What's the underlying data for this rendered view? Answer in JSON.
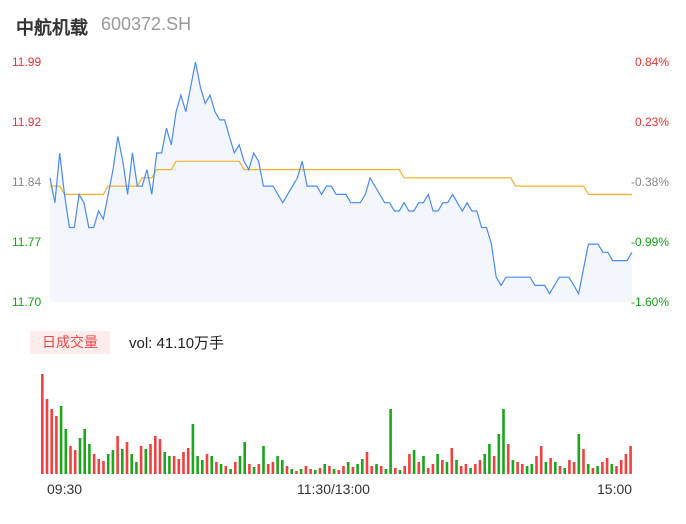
{
  "header": {
    "name": "中航机载",
    "code": "600372.SH"
  },
  "price_axis": {
    "left_labels": [
      "11.99",
      "11.92",
      "11.84",
      "11.77",
      "11.70"
    ],
    "right_labels": [
      "0.84%",
      "0.23%",
      "-0.38%",
      "-0.99%",
      "-1.60%"
    ],
    "colors": [
      "#f03030",
      "#f03030",
      "#888888",
      "#14a314",
      "#14a314"
    ]
  },
  "volume": {
    "badge_label": "日成交量",
    "vol_text": "vol: 41.10万手"
  },
  "time_axis": {
    "labels": [
      "09:30",
      "11:30/13:00",
      "15:00"
    ]
  },
  "colors": {
    "price_line": "#4a8af4",
    "avg_line": "#f5b02e",
    "up": "#f04040",
    "down": "#1aa71a"
  },
  "chart_data": [
    {
      "type": "line",
      "title": "",
      "ylim": [
        11.7,
        11.99
      ],
      "grid": false,
      "series": [
        {
          "values": [
            11.85,
            11.82,
            11.88,
            11.83,
            11.79,
            11.79,
            11.83,
            11.82,
            11.79,
            11.79,
            11.81,
            11.8,
            11.83,
            11.86,
            11.9,
            11.87,
            11.83,
            11.88,
            11.84,
            11.84,
            11.86,
            11.83,
            11.88,
            11.88,
            11.91,
            11.89,
            11.93,
            11.95,
            11.93,
            11.96,
            11.99,
            11.96,
            11.94,
            11.95,
            11.93,
            11.92,
            11.92,
            11.9,
            11.88,
            11.89,
            11.87,
            11.86,
            11.88,
            11.87,
            11.84,
            11.84,
            11.84,
            11.83,
            11.82,
            11.83,
            11.84,
            11.85,
            11.87,
            11.84,
            11.84,
            11.84,
            11.83,
            11.84,
            11.84,
            11.83,
            11.83,
            11.83,
            11.82,
            11.82,
            11.82,
            11.83,
            11.85,
            11.84,
            11.83,
            11.82,
            11.82,
            11.81,
            11.81,
            11.82,
            11.81,
            11.81,
            11.82,
            11.82,
            11.83,
            11.81,
            11.81,
            11.82,
            11.82,
            11.83,
            11.82,
            11.81,
            11.82,
            11.81,
            11.81,
            11.79,
            11.79,
            11.77,
            11.73,
            11.72,
            11.73,
            11.73,
            11.73,
            11.73,
            11.73,
            11.73,
            11.72,
            11.72,
            11.72,
            11.71,
            11.72,
            11.73,
            11.73,
            11.73,
            11.72,
            11.71,
            11.74,
            11.77,
            11.77,
            11.77,
            11.76,
            11.76,
            11.75,
            11.75,
            11.75,
            11.75,
            11.76
          ]
        },
        {
          "values": [
            11.84,
            11.84,
            11.84,
            11.83,
            11.83,
            11.83,
            11.83,
            11.83,
            11.83,
            11.83,
            11.83,
            11.83,
            11.84,
            11.84,
            11.84,
            11.84,
            11.84,
            11.84,
            11.84,
            11.85,
            11.85,
            11.85,
            11.86,
            11.86,
            11.86,
            11.86,
            11.87,
            11.87,
            11.87,
            11.87,
            11.87,
            11.87,
            11.87,
            11.87,
            11.87,
            11.87,
            11.87,
            11.87,
            11.87,
            11.87,
            11.86,
            11.86,
            11.86,
            11.86,
            11.86,
            11.86,
            11.86,
            11.86,
            11.86,
            11.86,
            11.86,
            11.86,
            11.86,
            11.86,
            11.86,
            11.86,
            11.86,
            11.86,
            11.86,
            11.86,
            11.86,
            11.86,
            11.86,
            11.86,
            11.86,
            11.86,
            11.86,
            11.86,
            11.86,
            11.86,
            11.86,
            11.86,
            11.86,
            11.85,
            11.85,
            11.85,
            11.85,
            11.85,
            11.85,
            11.85,
            11.85,
            11.85,
            11.85,
            11.85,
            11.85,
            11.85,
            11.85,
            11.85,
            11.85,
            11.85,
            11.85,
            11.85,
            11.85,
            11.85,
            11.85,
            11.85,
            11.84,
            11.84,
            11.84,
            11.84,
            11.84,
            11.84,
            11.84,
            11.84,
            11.84,
            11.84,
            11.84,
            11.84,
            11.84,
            11.84,
            11.84,
            11.83,
            11.83,
            11.83,
            11.83,
            11.83,
            11.83,
            11.83,
            11.83,
            11.83,
            11.83
          ]
        }
      ]
    },
    {
      "type": "bar",
      "title": "",
      "values": [
        100,
        75,
        65,
        58,
        68,
        45,
        28,
        24,
        36,
        45,
        30,
        20,
        15,
        13,
        20,
        24,
        38,
        25,
        32,
        20,
        12,
        28,
        25,
        30,
        38,
        35,
        22,
        18,
        18,
        15,
        22,
        26,
        50,
        18,
        14,
        20,
        18,
        12,
        10,
        8,
        5,
        12,
        18,
        32,
        10,
        7,
        10,
        28,
        10,
        12,
        18,
        14,
        8,
        5,
        3,
        5,
        8,
        5,
        4,
        6,
        10,
        8,
        5,
        4,
        8,
        12,
        7,
        10,
        15,
        22,
        8,
        10,
        8,
        5,
        65,
        6,
        4,
        8,
        20,
        24,
        12,
        18,
        6,
        10,
        20,
        14,
        12,
        26,
        14,
        8,
        10,
        6,
        10,
        14,
        20,
        30,
        18,
        40,
        65,
        30,
        14,
        12,
        10,
        8,
        10,
        18,
        28,
        12,
        16,
        12,
        8,
        6,
        14,
        12,
        40,
        25,
        10,
        6,
        8,
        12,
        16,
        10,
        8,
        14,
        20,
        28
      ],
      "colors": [
        "up",
        "up",
        "up",
        "up",
        "down",
        "down",
        "up",
        "up",
        "down",
        "down",
        "down",
        "up",
        "up",
        "up",
        "down",
        "down",
        "up",
        "down",
        "up",
        "down",
        "down",
        "up",
        "down",
        "up",
        "up",
        "up",
        "down",
        "down",
        "up",
        "up",
        "up",
        "up",
        "down",
        "down",
        "down",
        "up",
        "down",
        "up",
        "down",
        "up",
        "down",
        "up",
        "down",
        "down",
        "up",
        "down",
        "up",
        "down",
        "up",
        "up",
        "down",
        "down",
        "up",
        "down",
        "up",
        "down",
        "up",
        "up",
        "down",
        "up",
        "down",
        "up",
        "down",
        "up",
        "up",
        "down",
        "up",
        "down",
        "down",
        "up",
        "up",
        "down",
        "up",
        "down",
        "down",
        "up",
        "down",
        "up",
        "up",
        "down",
        "up",
        "down",
        "up",
        "up",
        "down",
        "up",
        "down",
        "up",
        "down",
        "up",
        "up",
        "down",
        "up",
        "up",
        "down",
        "down",
        "up",
        "down",
        "down",
        "up",
        "down",
        "up",
        "up",
        "down",
        "down",
        "up",
        "up",
        "down",
        "up",
        "down",
        "up",
        "down",
        "up",
        "up",
        "down",
        "up",
        "down",
        "up",
        "down",
        "up",
        "up",
        "down",
        "up",
        "up",
        "up",
        "up"
      ]
    }
  ]
}
